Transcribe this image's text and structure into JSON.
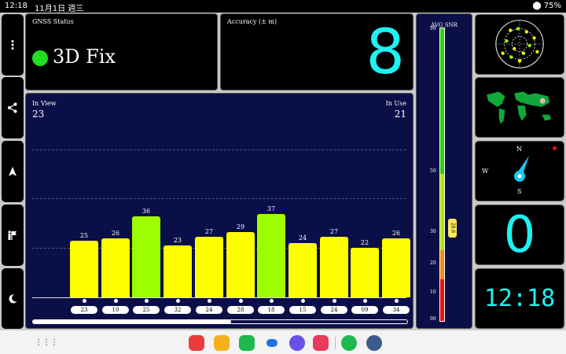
{
  "status_bar": {
    "time": "12:18",
    "date": "11月1日 週三",
    "battery": "75%"
  },
  "left_buttons": [
    {
      "name": "more-icon"
    },
    {
      "name": "share-icon"
    },
    {
      "name": "navigation-icon"
    },
    {
      "name": "flag-icon"
    },
    {
      "name": "night-mode-icon"
    }
  ],
  "gnss": {
    "label": "GNSS Status",
    "value": "3D Fix",
    "status_color": "#22dd22"
  },
  "accuracy": {
    "label": "Accuracy (± m)",
    "value": "8"
  },
  "satellites": {
    "in_view_label": "In View",
    "in_view": "23",
    "in_use_label": "In Use",
    "in_use": "21",
    "colors": {
      "yellow": "#ffff00",
      "green": "#9dff00"
    },
    "bars": [
      {
        "snr": "25",
        "sv": "23",
        "used": true
      },
      {
        "snr": "26",
        "sv": "10",
        "used": true
      },
      {
        "snr": "36",
        "sv": "25",
        "used": true
      },
      {
        "snr": "23",
        "sv": "32",
        "used": true
      },
      {
        "snr": "27",
        "sv": "24",
        "used": true
      },
      {
        "snr": "29",
        "sv": "28",
        "used": true
      },
      {
        "snr": "37",
        "sv": "18",
        "used": true
      },
      {
        "snr": "24",
        "sv": "15",
        "used": true
      },
      {
        "snr": "27",
        "sv": "24",
        "used": true
      },
      {
        "snr": "22",
        "sv": "09",
        "used": true
      },
      {
        "snr": "26",
        "sv": "34",
        "used": true
      }
    ],
    "scroll_fraction": 0.53
  },
  "avg_snr": {
    "label": "AVG SNR",
    "value": "28.6",
    "ticks": [
      "99",
      "50",
      "30",
      "20",
      "10",
      "00"
    ]
  },
  "compass": {
    "n": "N",
    "s": "S",
    "w": "W"
  },
  "speed": {
    "value": "0"
  },
  "clock": {
    "value": "12:18"
  }
}
